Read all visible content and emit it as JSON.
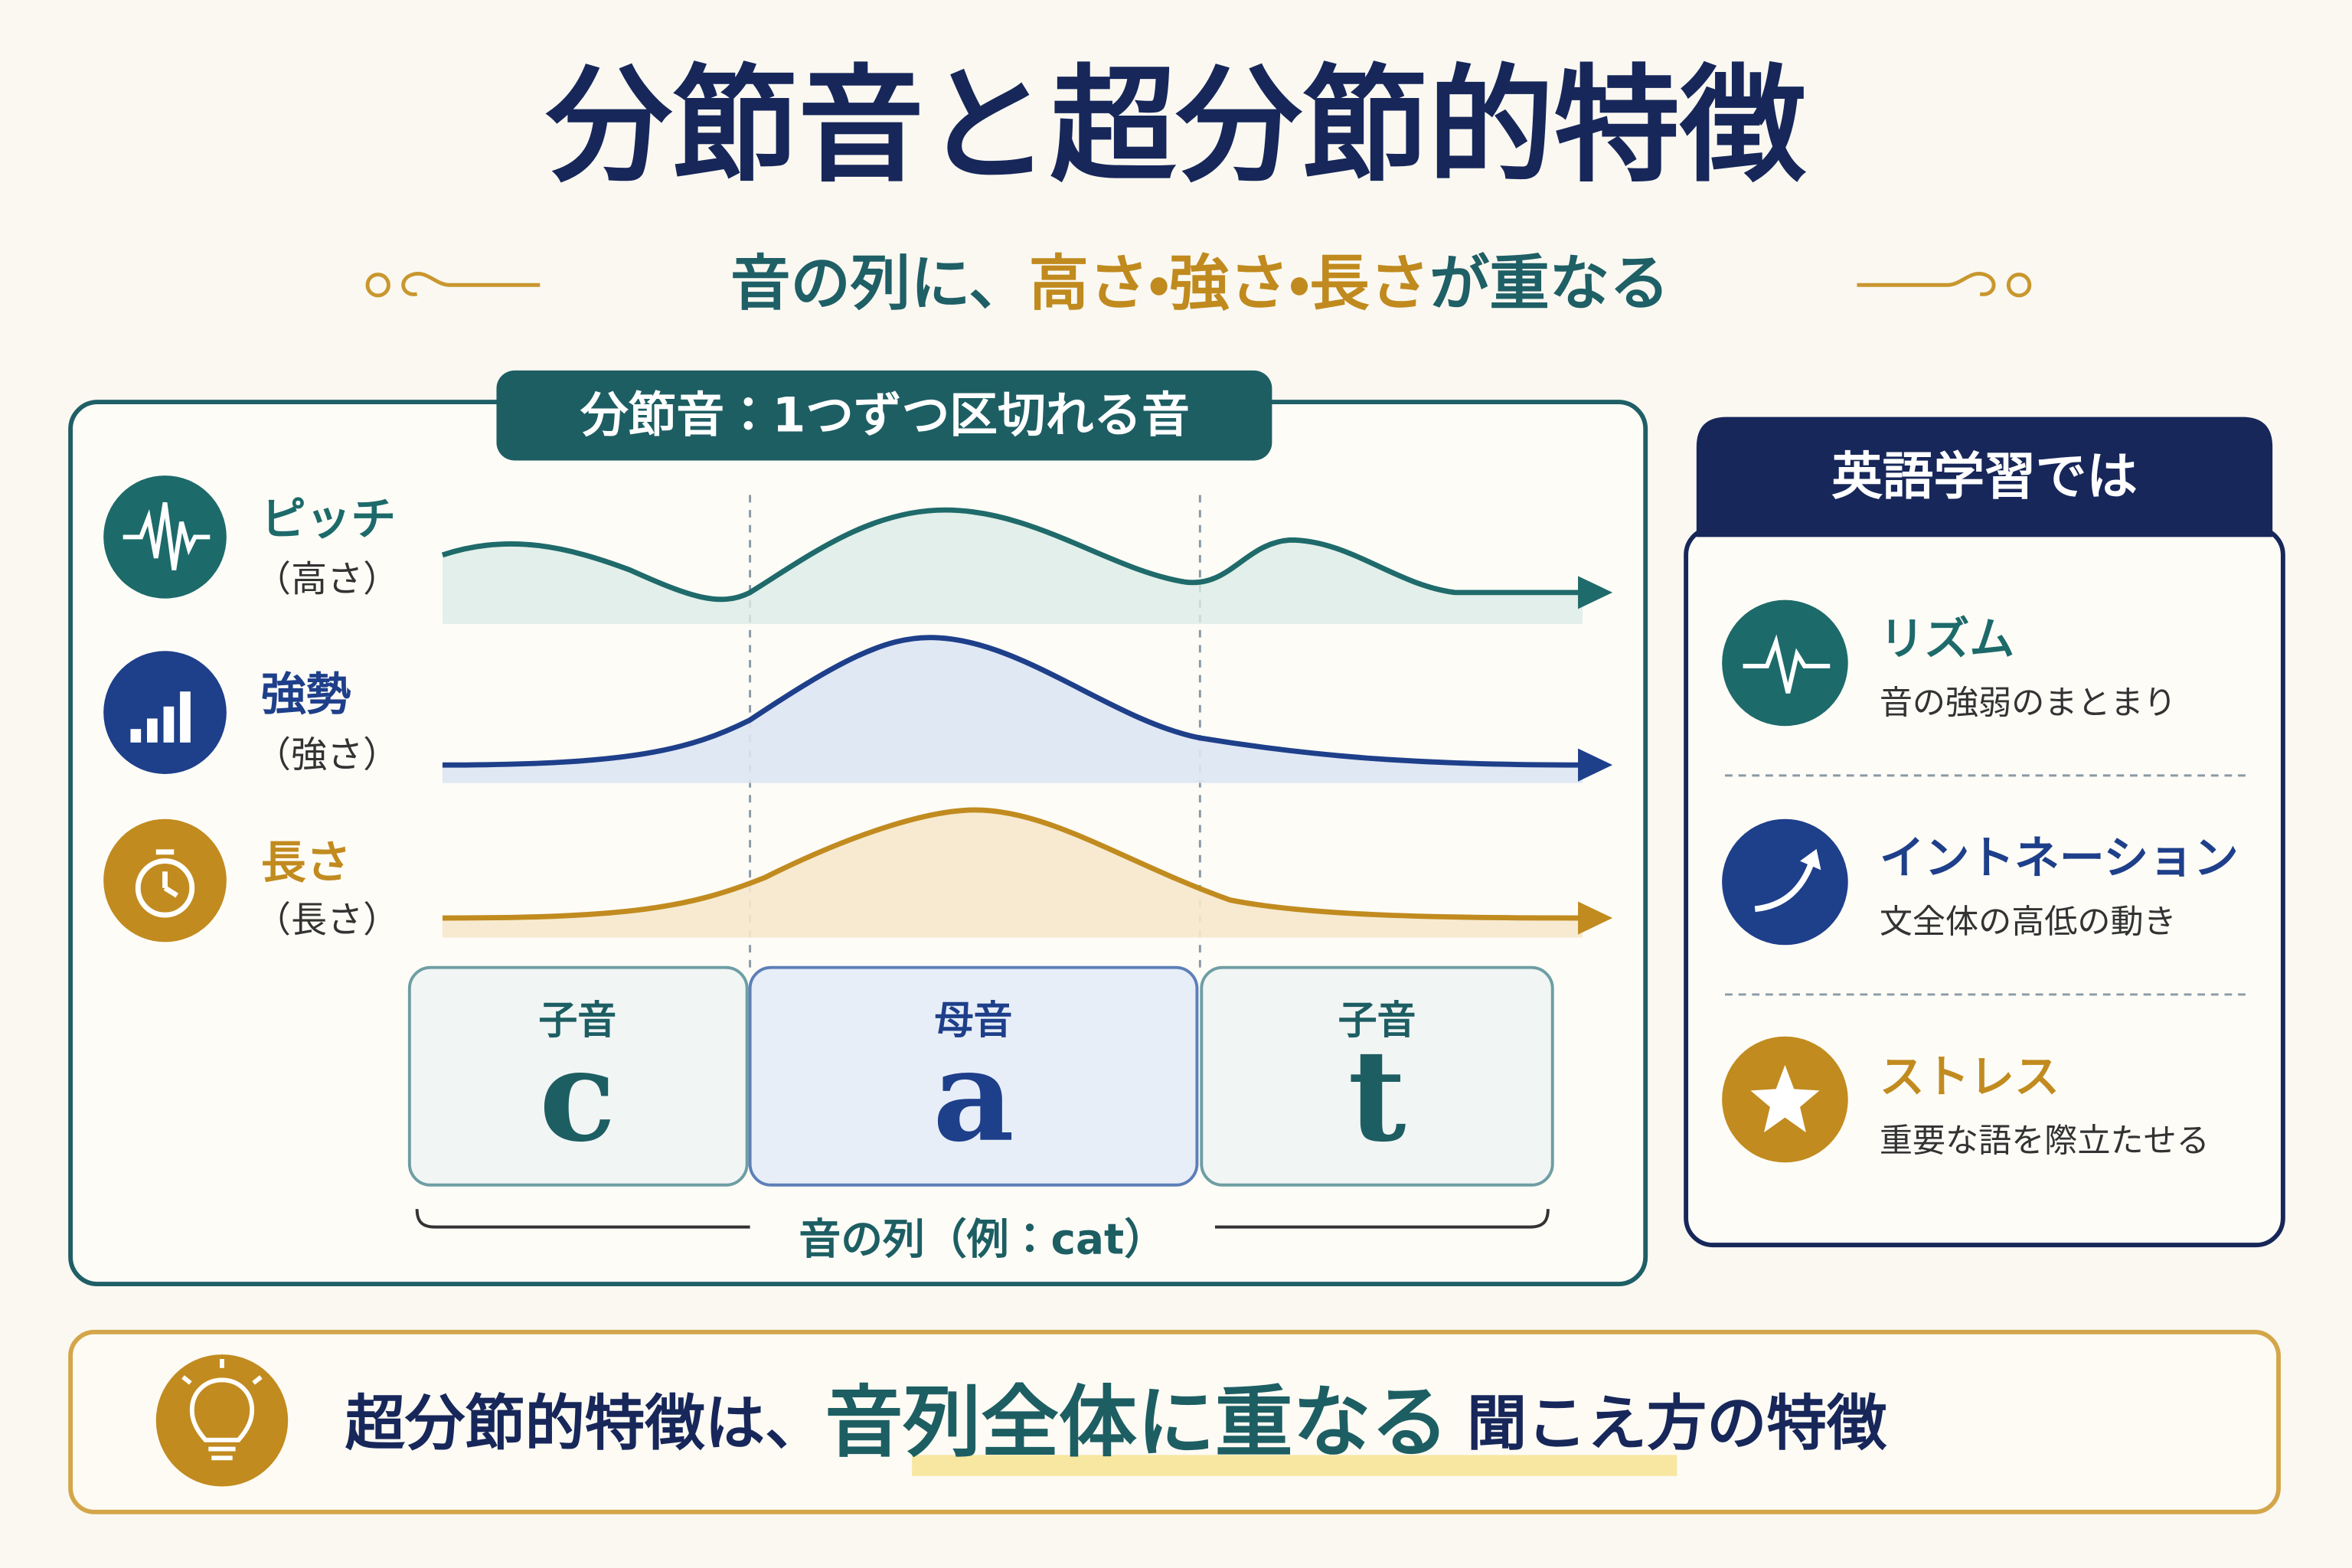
{
  "header": {
    "title": "分節音と超分節的特徴",
    "subtitle_parts": [
      "音の列に、",
      "高さ",
      "・",
      "強さ",
      "・",
      "長さ",
      "が重なる"
    ]
  },
  "segmental_panel": {
    "label": "分節音：1つずつ区切れる音",
    "features": [
      {
        "name": "ピッチ",
        "sub": "（高さ）"
      },
      {
        "name": "強勢",
        "sub": "（強さ）"
      },
      {
        "name": "長さ",
        "sub": "（長さ）"
      }
    ],
    "segments": [
      {
        "kind": "子音",
        "letter": "c"
      },
      {
        "kind": "母音",
        "letter": "a"
      },
      {
        "kind": "子音",
        "letter": "t"
      }
    ],
    "caption": "音の列（例：cat）"
  },
  "english_panel": {
    "title": "英語学習では",
    "items": [
      {
        "name": "リズム",
        "desc": "音の強弱のまとまり"
      },
      {
        "name": "イントネーション",
        "desc": "文全体の高低の動き"
      },
      {
        "name": "ストレス",
        "desc": "重要な語を際立たせる"
      }
    ]
  },
  "footer": {
    "parts": [
      "超分節的特徴は、",
      "音列全体に重なる",
      "聞こえ方の特徴"
    ]
  }
}
